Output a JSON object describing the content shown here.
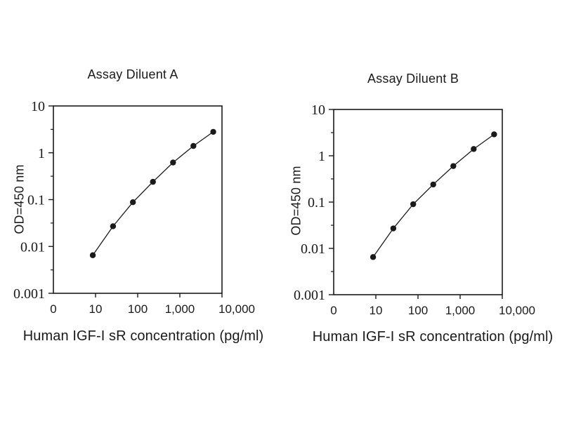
{
  "figure": {
    "background": "#ffffff",
    "ink_color": "#1a1a1a"
  },
  "chart_data": [
    {
      "type": "line",
      "title": "Assay Diluent A",
      "xlabel": "Human IGF-I sR concentration (pg/ml)",
      "ylabel": "OD=450 nm",
      "x_scale": "log",
      "y_scale": "log",
      "xlim": [
        1,
        10000
      ],
      "ylim": [
        0.001,
        10
      ],
      "x_ticks": [
        "0",
        "10",
        "100",
        "1,000",
        "10,000"
      ],
      "y_ticks": [
        "10",
        "1",
        "0.1",
        "0.01",
        "0.001"
      ],
      "grid": false,
      "legend": "none",
      "marker": "filled-circle",
      "x": [
        8.6,
        26,
        77,
        230,
        690,
        2100,
        6200
      ],
      "y": [
        0.0065,
        0.027,
        0.088,
        0.24,
        0.62,
        1.4,
        2.8
      ]
    },
    {
      "type": "line",
      "title": "Assay Diluent B",
      "xlabel": "Human IGF-I sR concentration (pg/ml)",
      "ylabel": "OD=450 nm",
      "x_scale": "log",
      "y_scale": "log",
      "xlim": [
        1,
        10000
      ],
      "ylim": [
        0.001,
        10
      ],
      "x_ticks": [
        "0",
        "10",
        "100",
        "1,000",
        "10,000"
      ],
      "y_ticks": [
        "10",
        "1",
        "0.1",
        "0.01",
        "0.001"
      ],
      "grid": false,
      "legend": "none",
      "marker": "filled-circle",
      "x": [
        8.6,
        26,
        77,
        230,
        690,
        2100,
        6400
      ],
      "y": [
        0.0065,
        0.027,
        0.09,
        0.24,
        0.6,
        1.4,
        2.9
      ]
    }
  ]
}
